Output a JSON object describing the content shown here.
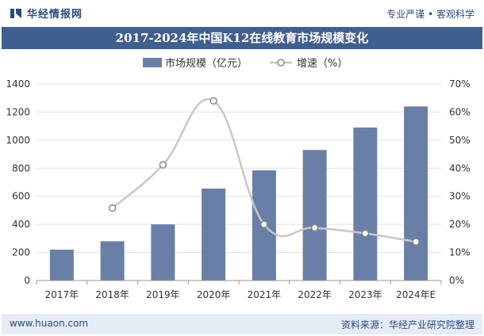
{
  "header": {
    "brand": "华经情报网",
    "slogan": "专业严谨 • 客观科学"
  },
  "title": "2017-2024年中国K12在线教育市场规模变化",
  "footer": {
    "url": "www.huaon.com",
    "source": "资料来源：华经产业研究院整理"
  },
  "colors": {
    "brand": "#2c4a7a",
    "title_bg": "#405f8f",
    "bar": "#6a7fa8",
    "line": "#c8c8c8",
    "footer_bg": "#e6ecf6"
  },
  "chart_data": {
    "type": "bar",
    "title": "2017-2024年中国K12在线教育市场规模变化",
    "categories": [
      "2017年",
      "2018年",
      "2019年",
      "2020年",
      "2021年",
      "2022年",
      "2023年",
      "2024年E"
    ],
    "series": [
      {
        "name": "市场规模（亿元）",
        "type": "bar",
        "axis": "left",
        "values": [
          220,
          280,
          400,
          655,
          785,
          930,
          1090,
          1240
        ]
      },
      {
        "name": "增速（%）",
        "type": "line",
        "axis": "right",
        "values": [
          null,
          25.8,
          41.2,
          64.0,
          20.0,
          18.8,
          16.8,
          13.8
        ]
      }
    ],
    "ylim_left": [
      0,
      1400
    ],
    "yticks_left": [
      0,
      200,
      400,
      600,
      800,
      1000,
      1200,
      1400
    ],
    "ylim_right": [
      0,
      70
    ],
    "yticks_right": [
      "0%",
      "10%",
      "20%",
      "30%",
      "40%",
      "50%",
      "60%",
      "70%"
    ],
    "legend_position": "top-center"
  }
}
